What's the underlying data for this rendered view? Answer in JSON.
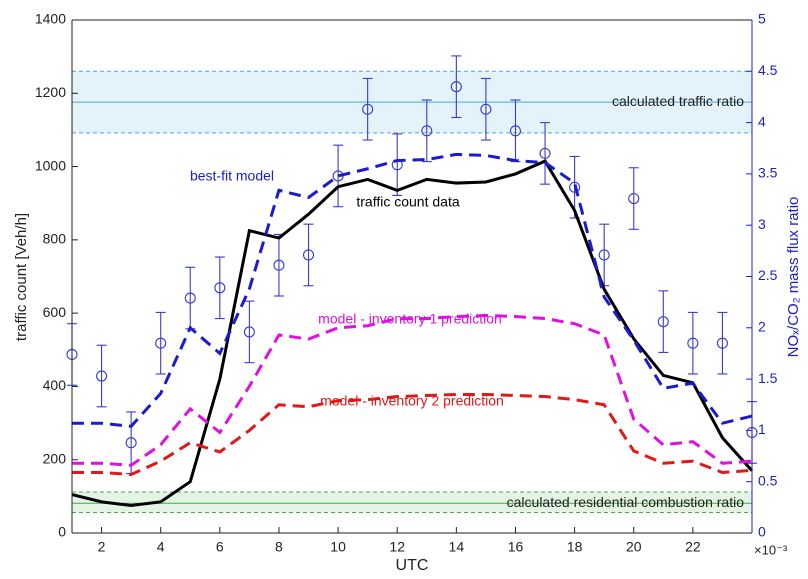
{
  "chart_data": {
    "type": "line",
    "xlabel": "UTC",
    "ylabel": "traffic count [Veh/h]",
    "y2label": "NOₓ/CO₂ mass flux ratio",
    "y2multiplier": "×10⁻³",
    "x": [
      1,
      2,
      3,
      4,
      5,
      6,
      7,
      8,
      9,
      10,
      11,
      12,
      13,
      14,
      15,
      16,
      17,
      18,
      19,
      20,
      21,
      22,
      23,
      24
    ],
    "xlim": [
      1,
      24
    ],
    "xticks": [
      2,
      4,
      6,
      8,
      10,
      12,
      14,
      16,
      18,
      20,
      22
    ],
    "ylim": [
      0,
      1400
    ],
    "yticks": [
      0,
      200,
      400,
      600,
      800,
      1000,
      1200,
      1400
    ],
    "y2lim": [
      0,
      5
    ],
    "y2ticks": [
      0,
      0.5,
      1,
      1.5,
      2,
      2.5,
      3,
      3.5,
      4,
      4.5,
      5
    ],
    "y2color": "#2020c8",
    "series": [
      {
        "name": "traffic count data",
        "color": "#000000",
        "dash": false,
        "values": [
          105,
          85,
          75,
          85,
          140,
          420,
          825,
          805,
          870,
          945,
          965,
          935,
          965,
          955,
          958,
          980,
          1015,
          880,
          665,
          530,
          430,
          410,
          260,
          170
        ]
      },
      {
        "name": "best-fit model",
        "color": "#1a1ad0",
        "dash": true,
        "axis": "y2",
        "values": [
          1.07,
          1.07,
          1.04,
          1.36,
          2.0,
          1.75,
          2.38,
          3.34,
          3.27,
          3.48,
          3.55,
          3.63,
          3.64,
          3.69,
          3.68,
          3.63,
          3.61,
          3.41,
          2.3,
          1.88,
          1.41,
          1.46,
          1.07,
          1.14
        ]
      },
      {
        "name": "model - inventory 1 prediction",
        "color": "#e010e0",
        "dash": true,
        "axis": "y2",
        "values": [
          0.68,
          0.68,
          0.66,
          0.86,
          1.21,
          0.98,
          1.43,
          1.93,
          1.89,
          2.0,
          2.02,
          2.09,
          2.09,
          2.11,
          2.12,
          2.11,
          2.09,
          2.04,
          1.93,
          1.11,
          0.86,
          0.89,
          0.68,
          0.7
        ]
      },
      {
        "name": "model - inventory 2 prediction",
        "color": "#e01818",
        "dash": true,
        "axis": "y2",
        "values": [
          0.59,
          0.59,
          0.57,
          0.7,
          0.88,
          0.79,
          1.0,
          1.25,
          1.23,
          1.29,
          1.3,
          1.33,
          1.34,
          1.35,
          1.35,
          1.34,
          1.33,
          1.3,
          1.25,
          0.8,
          0.68,
          0.7,
          0.59,
          0.61
        ]
      }
    ],
    "observations": {
      "color": "#3a3ad0",
      "axis": "y2",
      "values": [
        1.74,
        1.53,
        0.88,
        1.85,
        2.29,
        2.39,
        1.96,
        2.61,
        2.71,
        3.48,
        4.13,
        3.59,
        3.92,
        4.35,
        4.13,
        3.92,
        3.7,
        3.37,
        2.71,
        3.26,
        2.06,
        1.85,
        1.85,
        0.98
      ],
      "errors": [
        0.3,
        0.3,
        0.3,
        0.3,
        0.3,
        0.3,
        0.3,
        0.3,
        0.3,
        0.3,
        0.3,
        0.3,
        0.3,
        0.3,
        0.3,
        0.3,
        0.3,
        0.3,
        0.3,
        0.3,
        0.3,
        0.3,
        0.3,
        0.3
      ]
    },
    "bands": [
      {
        "label": "calculated traffic ratio",
        "center": 4.2,
        "low": 3.9,
        "high": 4.5,
        "color": "#4aa8d8",
        "fill": "#e4f2fa"
      },
      {
        "label": "calculated residential combustion ratio",
        "center": 0.29,
        "low": 0.2,
        "high": 0.4,
        "color": "#40b040",
        "fill": "#e4f4e4"
      }
    ]
  }
}
